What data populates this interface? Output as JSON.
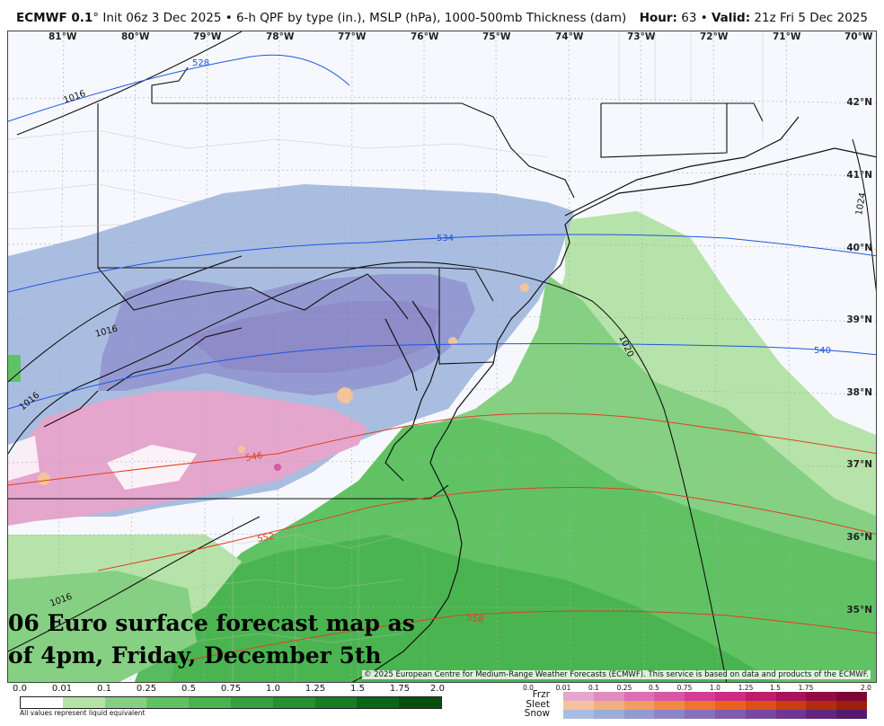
{
  "header": {
    "model": "ECMWF 0.1",
    "init": "° Init 06z 3 Dec 2025 • 6-h QPF by type (in.), MSLP (hPa), 1000-500mb Thickness (dam)",
    "hour_label": "Hour:",
    "hour_value": "63",
    "sep": " • ",
    "valid_label": "Valid:",
    "valid_value": "21z Fri 5 Dec 2025"
  },
  "map": {
    "longitudes": [
      "81°W",
      "80°W",
      "79°W",
      "78°W",
      "77°W",
      "76°W",
      "75°W",
      "74°W",
      "73°W",
      "72°W",
      "71°W",
      "70°W"
    ],
    "latitudes": [
      "42°N",
      "41°N",
      "40°N",
      "39°N",
      "38°N",
      "37°N",
      "36°N",
      "35°N"
    ],
    "isobar_labels": [
      "1016",
      "1016",
      "1016",
      "1016",
      "1020",
      "1024"
    ],
    "thickness_labels": [
      "528",
      "534",
      "540",
      "546",
      "552",
      "558"
    ],
    "overlay_line1": "06 Euro surface forecast map as",
    "overlay_line2": "of 4pm, Friday, December 5th",
    "copyright": "© 2025 European Centre for Medium-Range Weather Forecasts (ECMWF). This service is based on data and products of the ECMWF."
  },
  "legend_rain": {
    "ticks": [
      "0.0",
      "0.01",
      "0.1",
      "0.25",
      "0.5",
      "0.75",
      "1.0",
      "1.25",
      "1.5",
      "1.75",
      "2.0"
    ],
    "colors": [
      "#ffffff",
      "#b6e3aa",
      "#86d083",
      "#61c264",
      "#48b44e",
      "#34a23e",
      "#24902f",
      "#167d25",
      "#0b661a",
      "#06500f"
    ],
    "footnote": "All values represent liquid equivalent"
  },
  "legend_types": {
    "ticks": [
      "0.0",
      "0.01",
      "0.1",
      "0.25",
      "0.5",
      "0.75",
      "1.0",
      "1.25",
      "1.5",
      "1.75",
      "2.0"
    ],
    "frzr_label": "Frzr",
    "sleet_label": "Sleet",
    "snow_label": "Snow",
    "frzr_colors": [
      "#e4a6cc",
      "#e08cc0",
      "#dc6fb3",
      "#d856a6",
      "#d43c97",
      "#cf2a84",
      "#c21c6d",
      "#ab1257",
      "#930b44",
      "#7c0633"
    ],
    "sleet_colors": [
      "#f5c39a",
      "#f4b07c",
      "#f39c5f",
      "#f28846",
      "#f0742f",
      "#e9621f",
      "#dc4f17",
      "#ca3d10",
      "#b52c0b",
      "#9c1f08"
    ],
    "snow_colors": [
      "#a9bde0",
      "#9dadd9",
      "#9499d1",
      "#8c84c6",
      "#8670ba",
      "#7f5cad",
      "#77489f",
      "#6d3690",
      "#612680",
      "#541a6f"
    ]
  }
}
